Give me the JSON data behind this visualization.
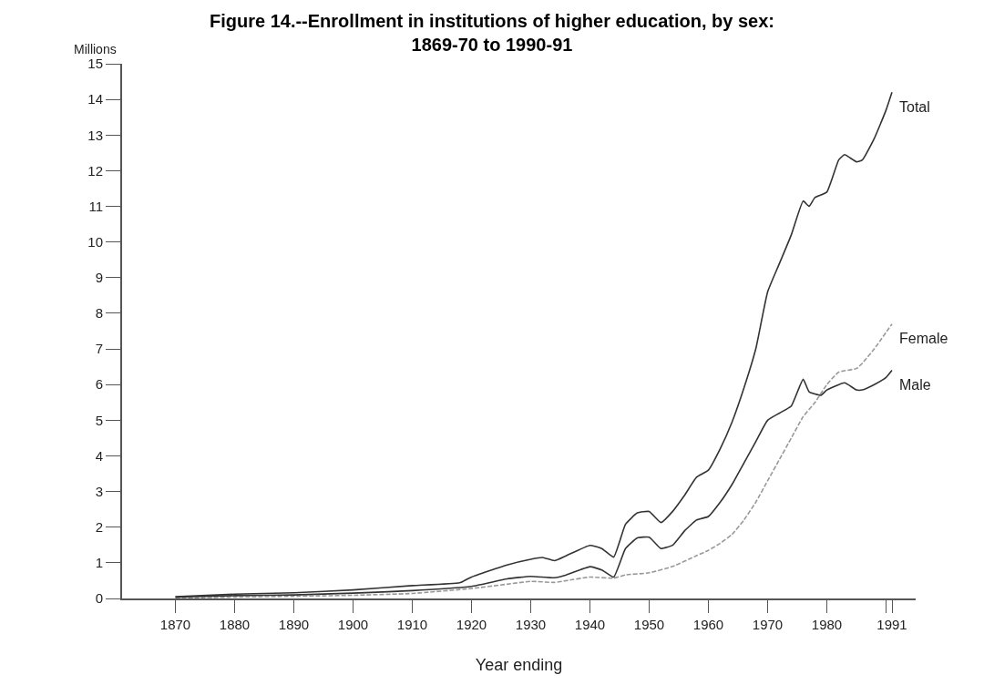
{
  "chart_data": {
    "type": "line",
    "title": "Figure 14.--Enrollment in institutions of higher education, by sex:\n1869-70 to 1990-91",
    "ylabel": "Millions",
    "xlabel": "Year ending",
    "xlim": [
      1861,
      1995
    ],
    "ylim": [
      0,
      15
    ],
    "xticks": [
      1870,
      1880,
      1890,
      1900,
      1910,
      1920,
      1930,
      1940,
      1950,
      1960,
      1970,
      1980,
      {
        "value": 1990,
        "label": null
      },
      1991
    ],
    "yticks": [
      0,
      1,
      2,
      3,
      4,
      5,
      6,
      7,
      8,
      9,
      10,
      11,
      12,
      13,
      14,
      15
    ],
    "marker": "none",
    "series": [
      {
        "name": "Total",
        "color": "#333333",
        "line_style": "solid",
        "x": [
          1870,
          1880,
          1890,
          1900,
          1910,
          1918,
          1920,
          1926,
          1930,
          1932,
          1934,
          1936,
          1940,
          1942,
          1944,
          1946,
          1948,
          1950,
          1952,
          1954,
          1956,
          1958,
          1960,
          1962,
          1964,
          1966,
          1968,
          1970,
          1972,
          1974,
          1976,
          1977,
          1978,
          1980,
          1982,
          1983,
          1985,
          1986,
          1988,
          1990,
          1991
        ],
        "values": [
          0.05,
          0.12,
          0.16,
          0.24,
          0.36,
          0.44,
          0.6,
          0.94,
          1.1,
          1.15,
          1.06,
          1.2,
          1.49,
          1.4,
          1.16,
          2.08,
          2.4,
          2.44,
          2.13,
          2.45,
          2.9,
          3.4,
          3.6,
          4.2,
          4.95,
          5.9,
          7.0,
          8.6,
          9.4,
          10.2,
          11.15,
          11.0,
          11.25,
          11.4,
          12.3,
          12.45,
          12.25,
          12.3,
          12.9,
          13.7,
          14.2
        ]
      },
      {
        "name": "Female",
        "color": "#999999",
        "line_style": "dashed",
        "x": [
          1870,
          1880,
          1890,
          1900,
          1910,
          1920,
          1926,
          1930,
          1934,
          1936,
          1940,
          1944,
          1946,
          1950,
          1954,
          1958,
          1960,
          1962,
          1964,
          1966,
          1968,
          1970,
          1972,
          1974,
          1976,
          1978,
          1980,
          1982,
          1985,
          1986,
          1988,
          1991
        ],
        "values": [
          0.01,
          0.04,
          0.06,
          0.09,
          0.14,
          0.28,
          0.4,
          0.48,
          0.45,
          0.5,
          0.6,
          0.57,
          0.66,
          0.72,
          0.9,
          1.2,
          1.35,
          1.55,
          1.8,
          2.2,
          2.7,
          3.3,
          3.9,
          4.5,
          5.1,
          5.5,
          6.0,
          6.35,
          6.45,
          6.6,
          7.0,
          7.7
        ]
      },
      {
        "name": "Male",
        "color": "#333333",
        "line_style": "solid",
        "x": [
          1870,
          1880,
          1890,
          1900,
          1910,
          1920,
          1926,
          1930,
          1934,
          1936,
          1940,
          1942,
          1944,
          1946,
          1948,
          1950,
          1952,
          1954,
          1956,
          1958,
          1960,
          1962,
          1964,
          1966,
          1968,
          1970,
          1972,
          1974,
          1976,
          1977,
          1979,
          1980,
          1983,
          1985,
          1986,
          1988,
          1990,
          1991
        ],
        "values": [
          0.04,
          0.08,
          0.1,
          0.15,
          0.22,
          0.34,
          0.55,
          0.62,
          0.58,
          0.66,
          0.89,
          0.8,
          0.6,
          1.4,
          1.7,
          1.72,
          1.4,
          1.5,
          1.9,
          2.2,
          2.3,
          2.7,
          3.2,
          3.8,
          4.4,
          5.0,
          5.2,
          5.4,
          6.15,
          5.8,
          5.7,
          5.85,
          6.05,
          5.85,
          5.85,
          6.0,
          6.2,
          6.4
        ]
      }
    ]
  }
}
